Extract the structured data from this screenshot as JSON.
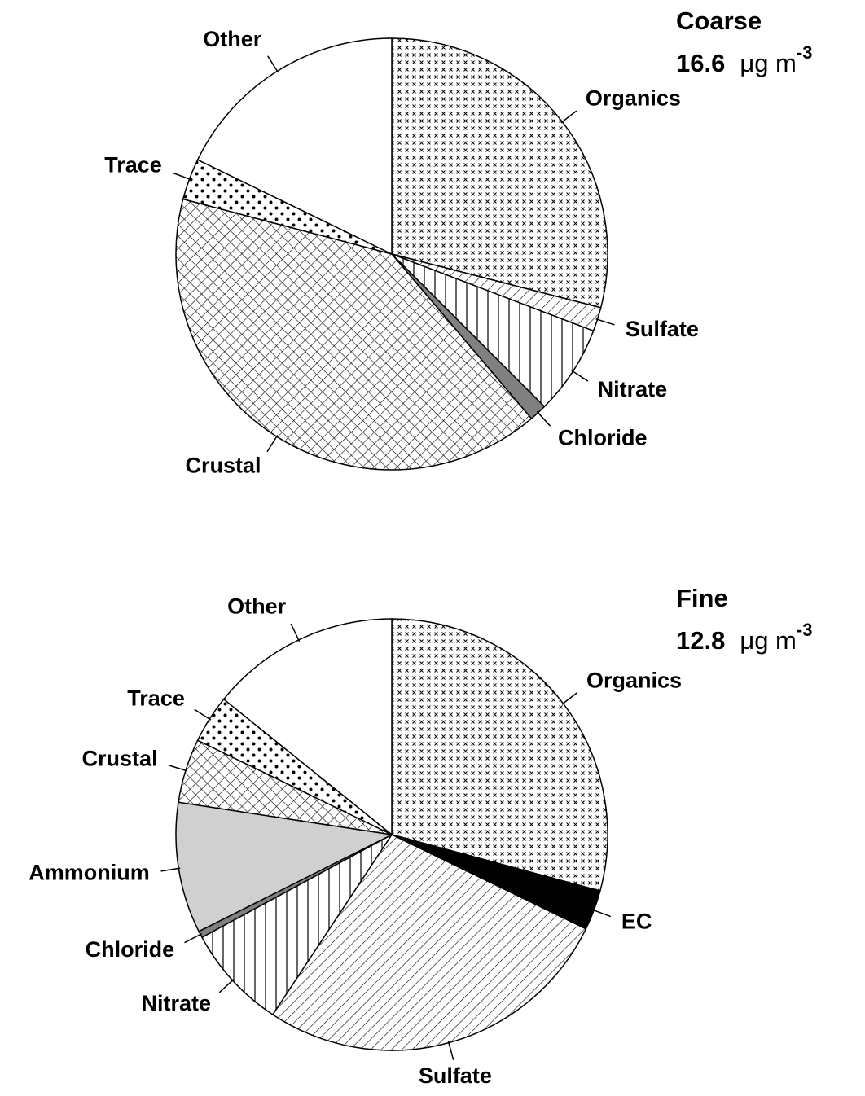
{
  "chart_data": [
    {
      "type": "pie",
      "title": "Coarse",
      "total": 16.6,
      "unit": "μg m",
      "unit_exponent": "-3",
      "categories": [
        "Organics",
        "Sulfate",
        "Nitrate",
        "Chloride",
        "Crustal",
        "Trace",
        "Other"
      ],
      "values": [
        29,
        1.8,
        6.7,
        1.3,
        40.3,
        3.1,
        17.8
      ],
      "colors": [
        "url(#p-cross)",
        "url(#p-hatch)",
        "url(#p-vert)",
        "#808080",
        "url(#p-crosshatch)",
        "url(#p-dots)",
        "#ffffff"
      ]
    },
    {
      "type": "pie",
      "title": "Fine",
      "total": 12.8,
      "unit": "μg m",
      "unit_exponent": "-3",
      "categories": [
        "Organics",
        "EC",
        "Sulfate",
        "Nitrate",
        "Chloride",
        "Ammonium",
        "Crustal",
        "Trace",
        "Other"
      ],
      "values": [
        29.2,
        3,
        27.1,
        7.8,
        0.5,
        9.8,
        4.8,
        3.6,
        14.2
      ],
      "colors": [
        "url(#p-cross)",
        "#000000",
        "url(#p-hatch)",
        "url(#p-vert)",
        "#808080",
        "#d0d0d0",
        "url(#p-crosshatch)",
        "url(#p-dots)",
        "#ffffff"
      ]
    }
  ]
}
